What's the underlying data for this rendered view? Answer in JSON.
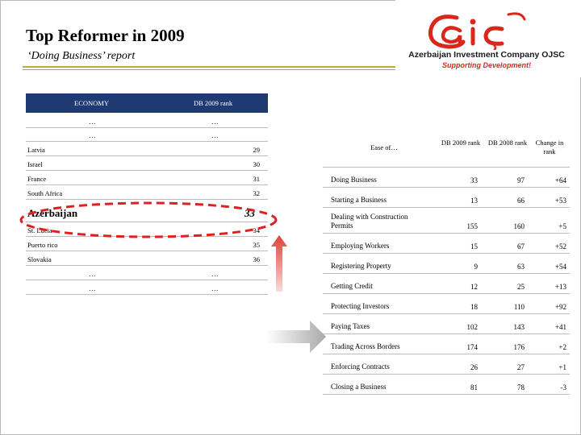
{
  "slide": {
    "title": "Top Reformer in 2009",
    "subtitle": "‘Doing Business’ report"
  },
  "logo": {
    "name": "Azerbaijan Investment Company OJSC",
    "tagline": "Supporting Development!",
    "lettering": "aiç",
    "colors": {
      "mark": "#d9271b",
      "name": "#1a1a1a",
      "tagline": "#d9271b"
    }
  },
  "left_table": {
    "headers": [
      "ECONOMY",
      "DB 2009 rank"
    ],
    "header_color": "#1f3a73",
    "rows": [
      {
        "economy": "…",
        "rank": "…",
        "ellipsis": true
      },
      {
        "economy": "…",
        "rank": "…",
        "ellipsis": true
      },
      {
        "economy": "Latvia",
        "rank": "29"
      },
      {
        "economy": "Israel",
        "rank": "30"
      },
      {
        "economy": "France",
        "rank": "31"
      },
      {
        "economy": "South Africa",
        "rank": "32"
      },
      {
        "economy": "Azerbaijan",
        "rank": "33",
        "highlight": true
      },
      {
        "economy": "St. Lucia",
        "rank": "34"
      },
      {
        "economy": "Puerto rico",
        "rank": "35"
      },
      {
        "economy": "Slovakia",
        "rank": "36"
      },
      {
        "economy": "…",
        "rank": "…",
        "ellipsis": true
      },
      {
        "economy": "…",
        "rank": "…",
        "ellipsis": true
      }
    ],
    "highlight_color": "#e02020"
  },
  "right_table": {
    "headers": {
      "indicator": "Ease of…",
      "db2009": "DB 2009 rank",
      "db2008": "DB 2008 rank",
      "change": "Change in rank"
    },
    "rows": [
      {
        "indicator": "Doing Business",
        "db2009": "33",
        "db2008": "97",
        "change": "+64"
      },
      {
        "indicator": "Starting a Business",
        "db2009": "13",
        "db2008": "66",
        "change": "+53"
      },
      {
        "indicator": "Dealing with Construction Permits",
        "db2009": "155",
        "db2008": "160",
        "change": "+5"
      },
      {
        "indicator": "Employing Workers",
        "db2009": "15",
        "db2008": "67",
        "change": "+52"
      },
      {
        "indicator": "Registering Property",
        "db2009": "9",
        "db2008": "63",
        "change": "+54"
      },
      {
        "indicator": "Getting Credit",
        "db2009": "12",
        "db2008": "25",
        "change": "+13"
      },
      {
        "indicator": "Protecting Investors",
        "db2009": "18",
        "db2008": "110",
        "change": "+92"
      },
      {
        "indicator": "Paying Taxes",
        "db2009": "102",
        "db2008": "143",
        "change": "+41"
      },
      {
        "indicator": "Trading Across Borders",
        "db2009": "174",
        "db2008": "176",
        "change": "+2"
      },
      {
        "indicator": "Enforcing Contracts",
        "db2009": "26",
        "db2008": "27",
        "change": "+1"
      },
      {
        "indicator": "Closing a Business",
        "db2009": "81",
        "db2008": "78",
        "change": "-3"
      }
    ]
  },
  "colors": {
    "header_rule": "#c9a23a",
    "arrow_red": "#e0403a",
    "arrow_grey": "#b0b0b0"
  }
}
